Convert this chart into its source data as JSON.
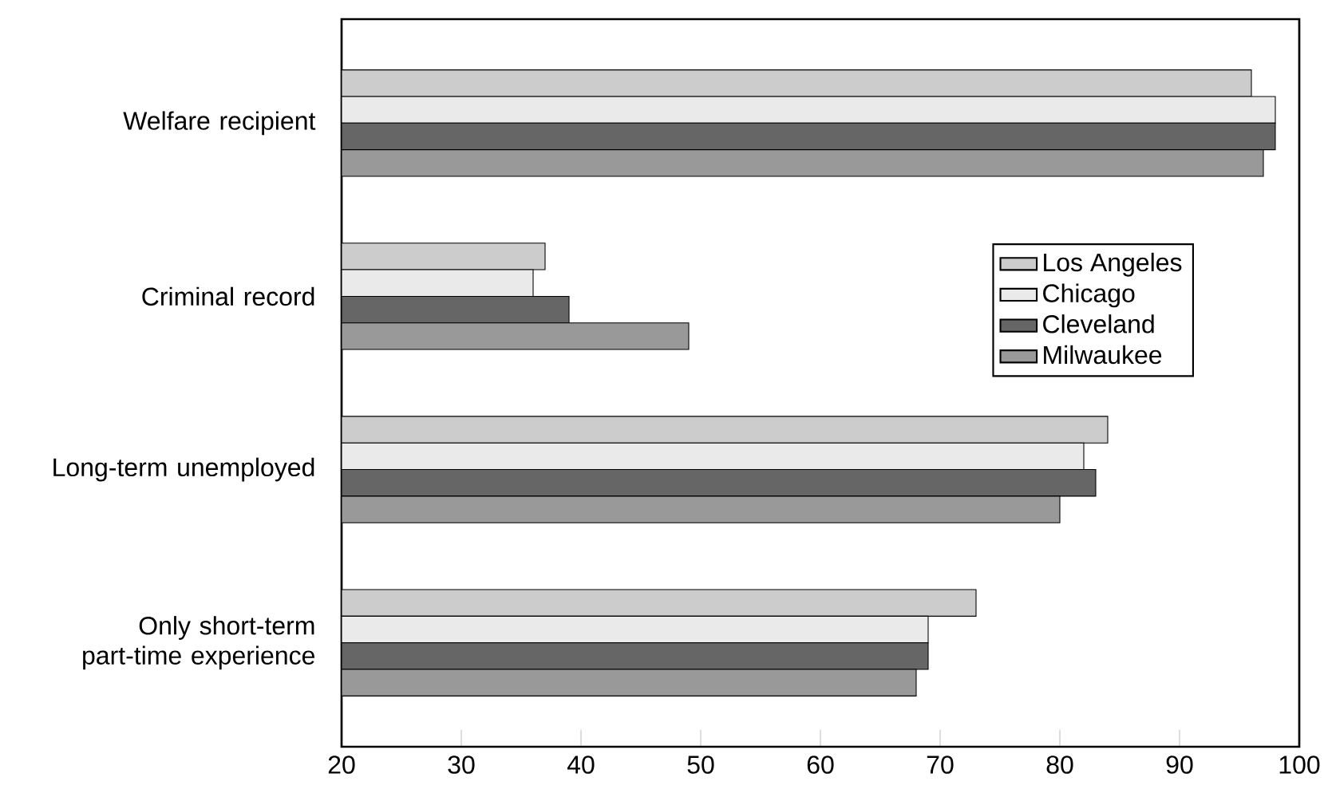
{
  "chart_data": {
    "type": "bar",
    "orientation": "horizontal",
    "categories": [
      "Welfare recipient",
      "Criminal record",
      "Long-term unemployed",
      "Only short-term part-time experience"
    ],
    "series": [
      {
        "name": "Los Angeles",
        "color": "#cccccc",
        "values": [
          96,
          37,
          84,
          73
        ]
      },
      {
        "name": "Chicago",
        "color": "#eaeaea",
        "values": [
          98,
          36,
          82,
          69
        ]
      },
      {
        "name": "Cleveland",
        "color": "#666666",
        "values": [
          98,
          39,
          83,
          69
        ]
      },
      {
        "name": "Milwaukee",
        "color": "#999999",
        "values": [
          97,
          49,
          80,
          68
        ]
      }
    ],
    "xlim": [
      20,
      100
    ],
    "xticks": [
      20,
      30,
      40,
      50,
      60,
      70,
      80,
      90,
      100
    ],
    "grid": false,
    "legend": "right"
  }
}
